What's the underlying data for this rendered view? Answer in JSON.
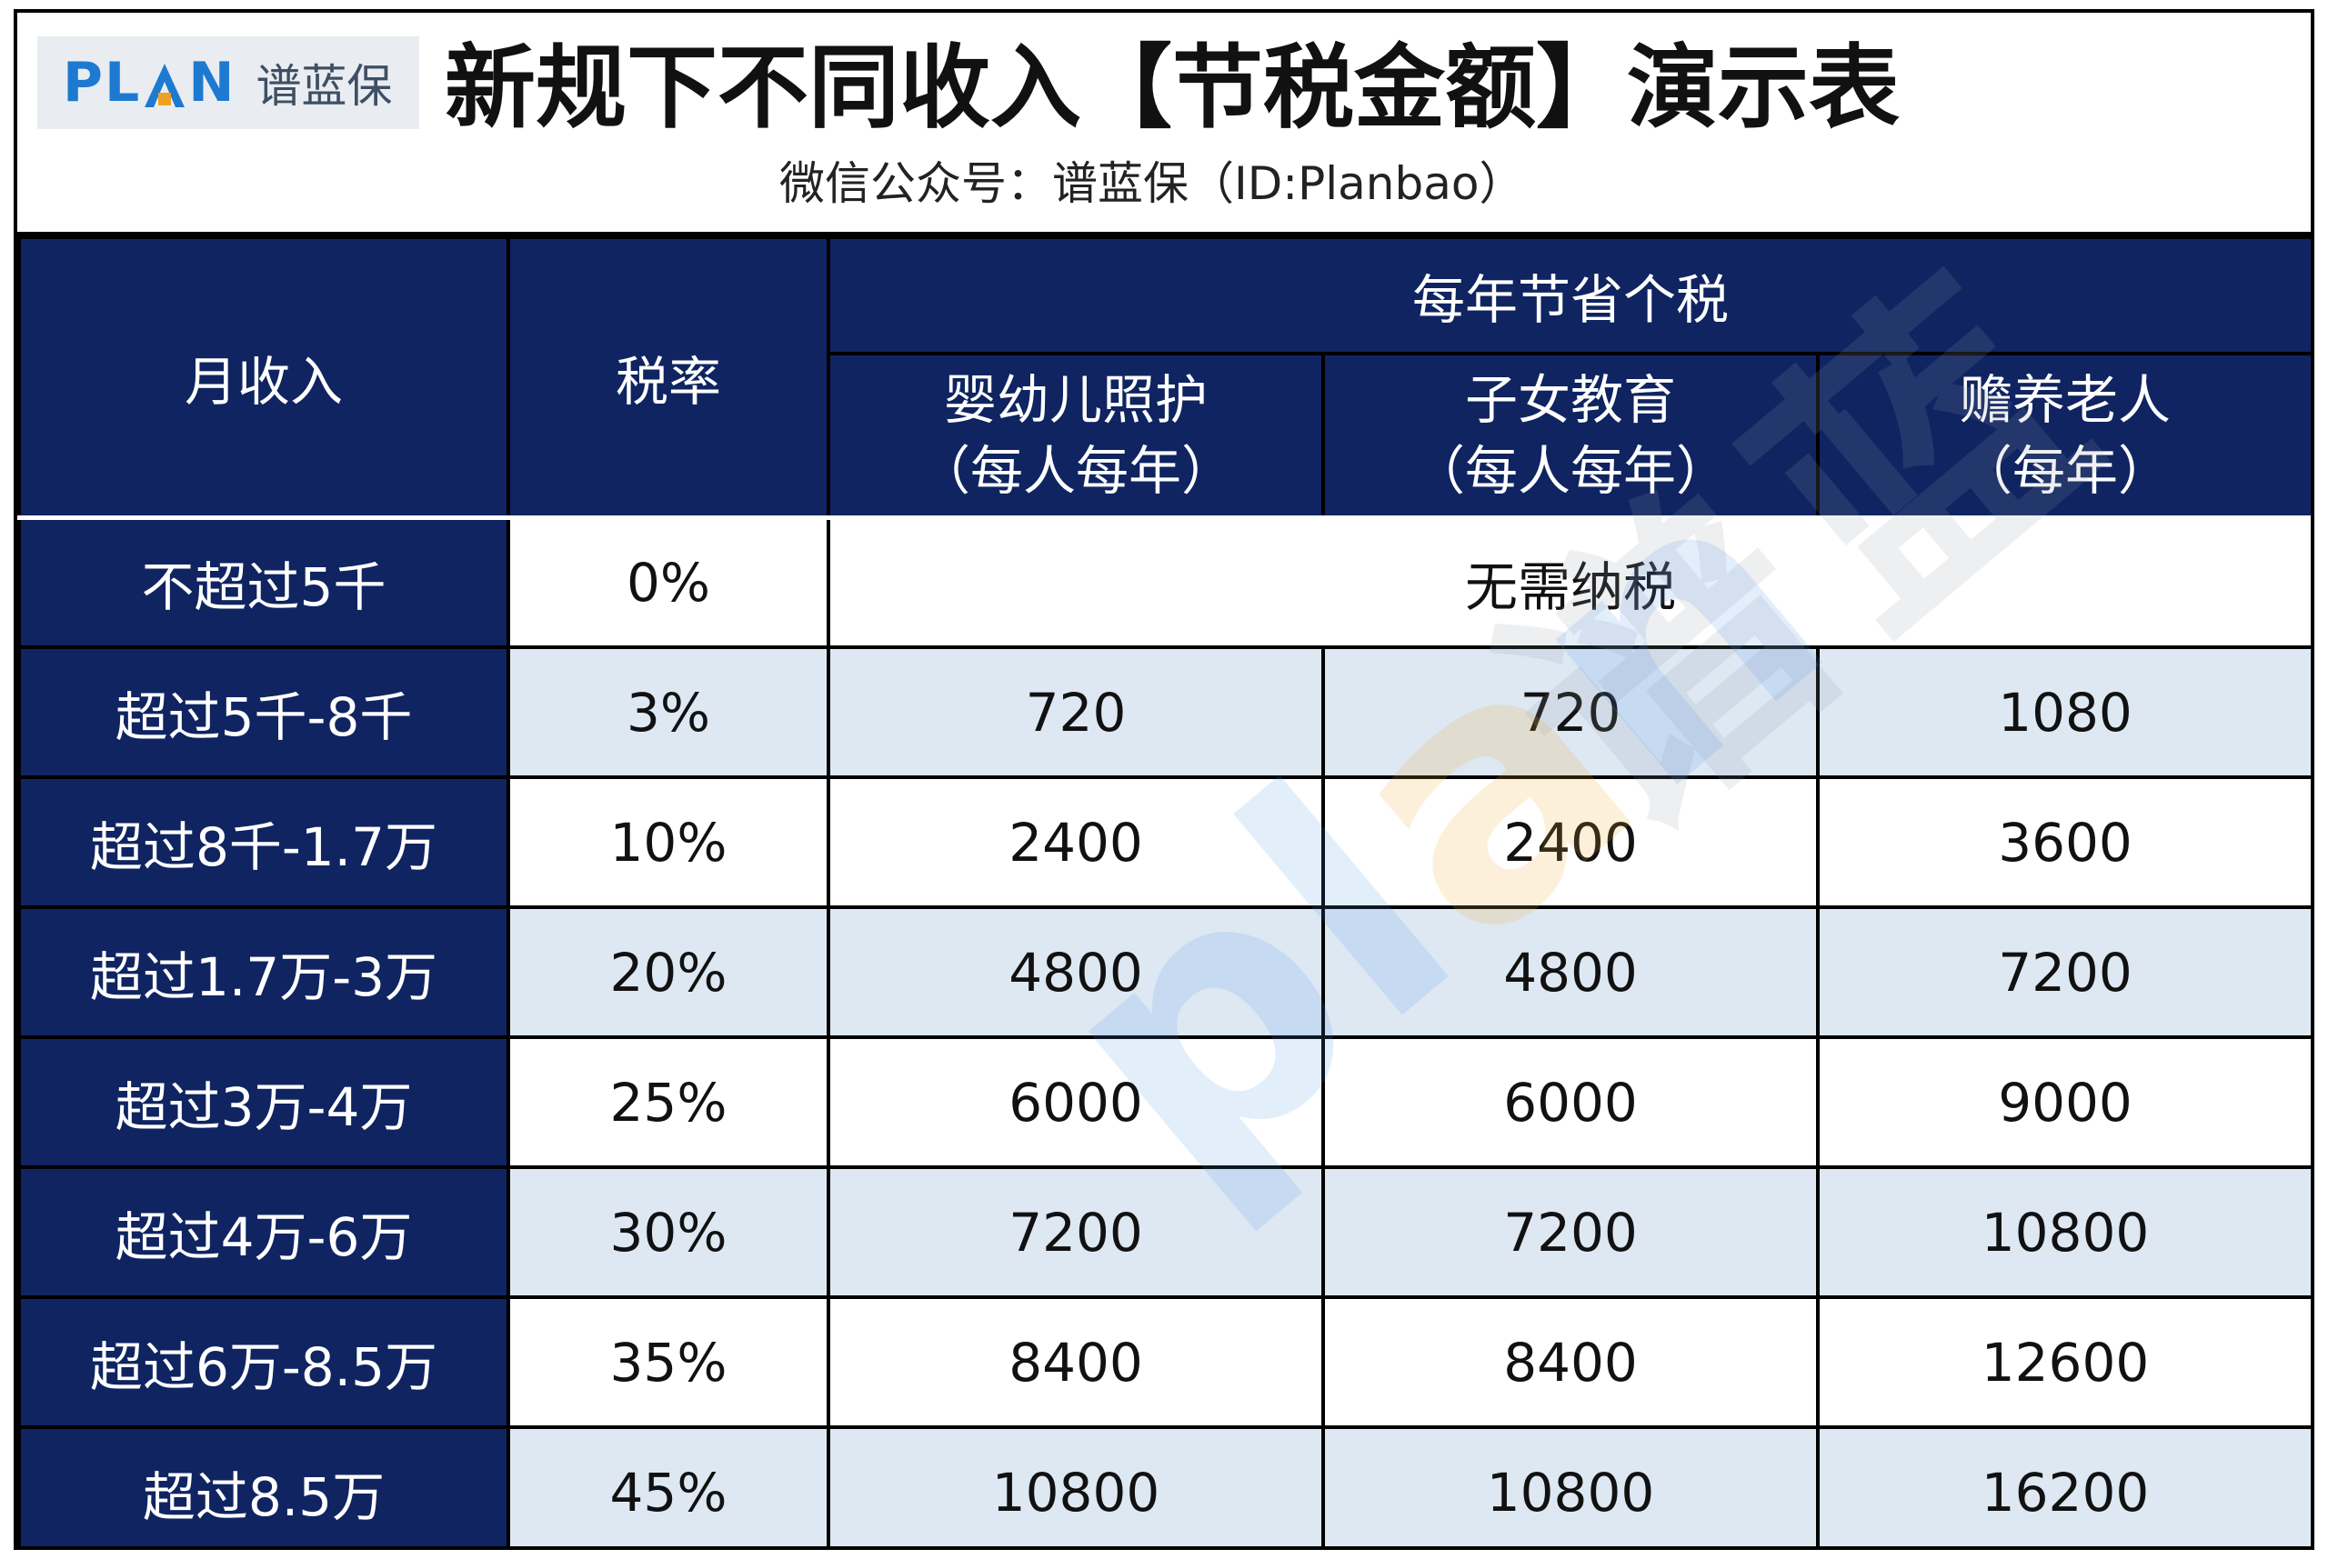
{
  "logo": {
    "word_left": "PL",
    "word_right": "N",
    "chinese": "谱蓝保"
  },
  "title": "新规下不同收入【节税金额】演示表",
  "subtitle": "微信公众号：谱蓝保（ID:Planbao）",
  "table": {
    "headers": {
      "income": "月收入",
      "rate": "税率",
      "savings_group": "每年节省个税",
      "col1_line1": "婴幼儿照护",
      "col1_line2": "（每人每年）",
      "col2_line1": "子女教育",
      "col2_line2": "（每人每年）",
      "col3_line1": "赡养老人",
      "col3_line2": "（每年）"
    },
    "rows": [
      {
        "income": "不超过5千",
        "rate": "0%",
        "merged": "无需纳税"
      },
      {
        "income": "超过5千-8千",
        "rate": "3%",
        "infant": "720",
        "education": "720",
        "elderly": "1080"
      },
      {
        "income": "超过8千-1.7万",
        "rate": "10%",
        "infant": "2400",
        "education": "2400",
        "elderly": "3600"
      },
      {
        "income": "超过1.7万-3万",
        "rate": "20%",
        "infant": "4800",
        "education": "4800",
        "elderly": "7200"
      },
      {
        "income": "超过3万-4万",
        "rate": "25%",
        "infant": "6000",
        "education": "6000",
        "elderly": "9000"
      },
      {
        "income": "超过4万-6万",
        "rate": "30%",
        "infant": "7200",
        "education": "7200",
        "elderly": "10800"
      },
      {
        "income": "超过6万-8.5万",
        "rate": "35%",
        "infant": "8400",
        "education": "8400",
        "elderly": "12600"
      },
      {
        "income": "超过8.5万",
        "rate": "45%",
        "infant": "10800",
        "education": "10800",
        "elderly": "16200"
      }
    ]
  },
  "watermark": {
    "chinese": "谱蓝",
    "english_p": "p",
    "english_l": "l",
    "english_a": "a",
    "english_n": "n"
  },
  "colors": {
    "navy": "#0f2461",
    "light_row": "#dde8f3",
    "logo_blue": "#1e7ad1",
    "logo_orange": "#f0a020"
  }
}
